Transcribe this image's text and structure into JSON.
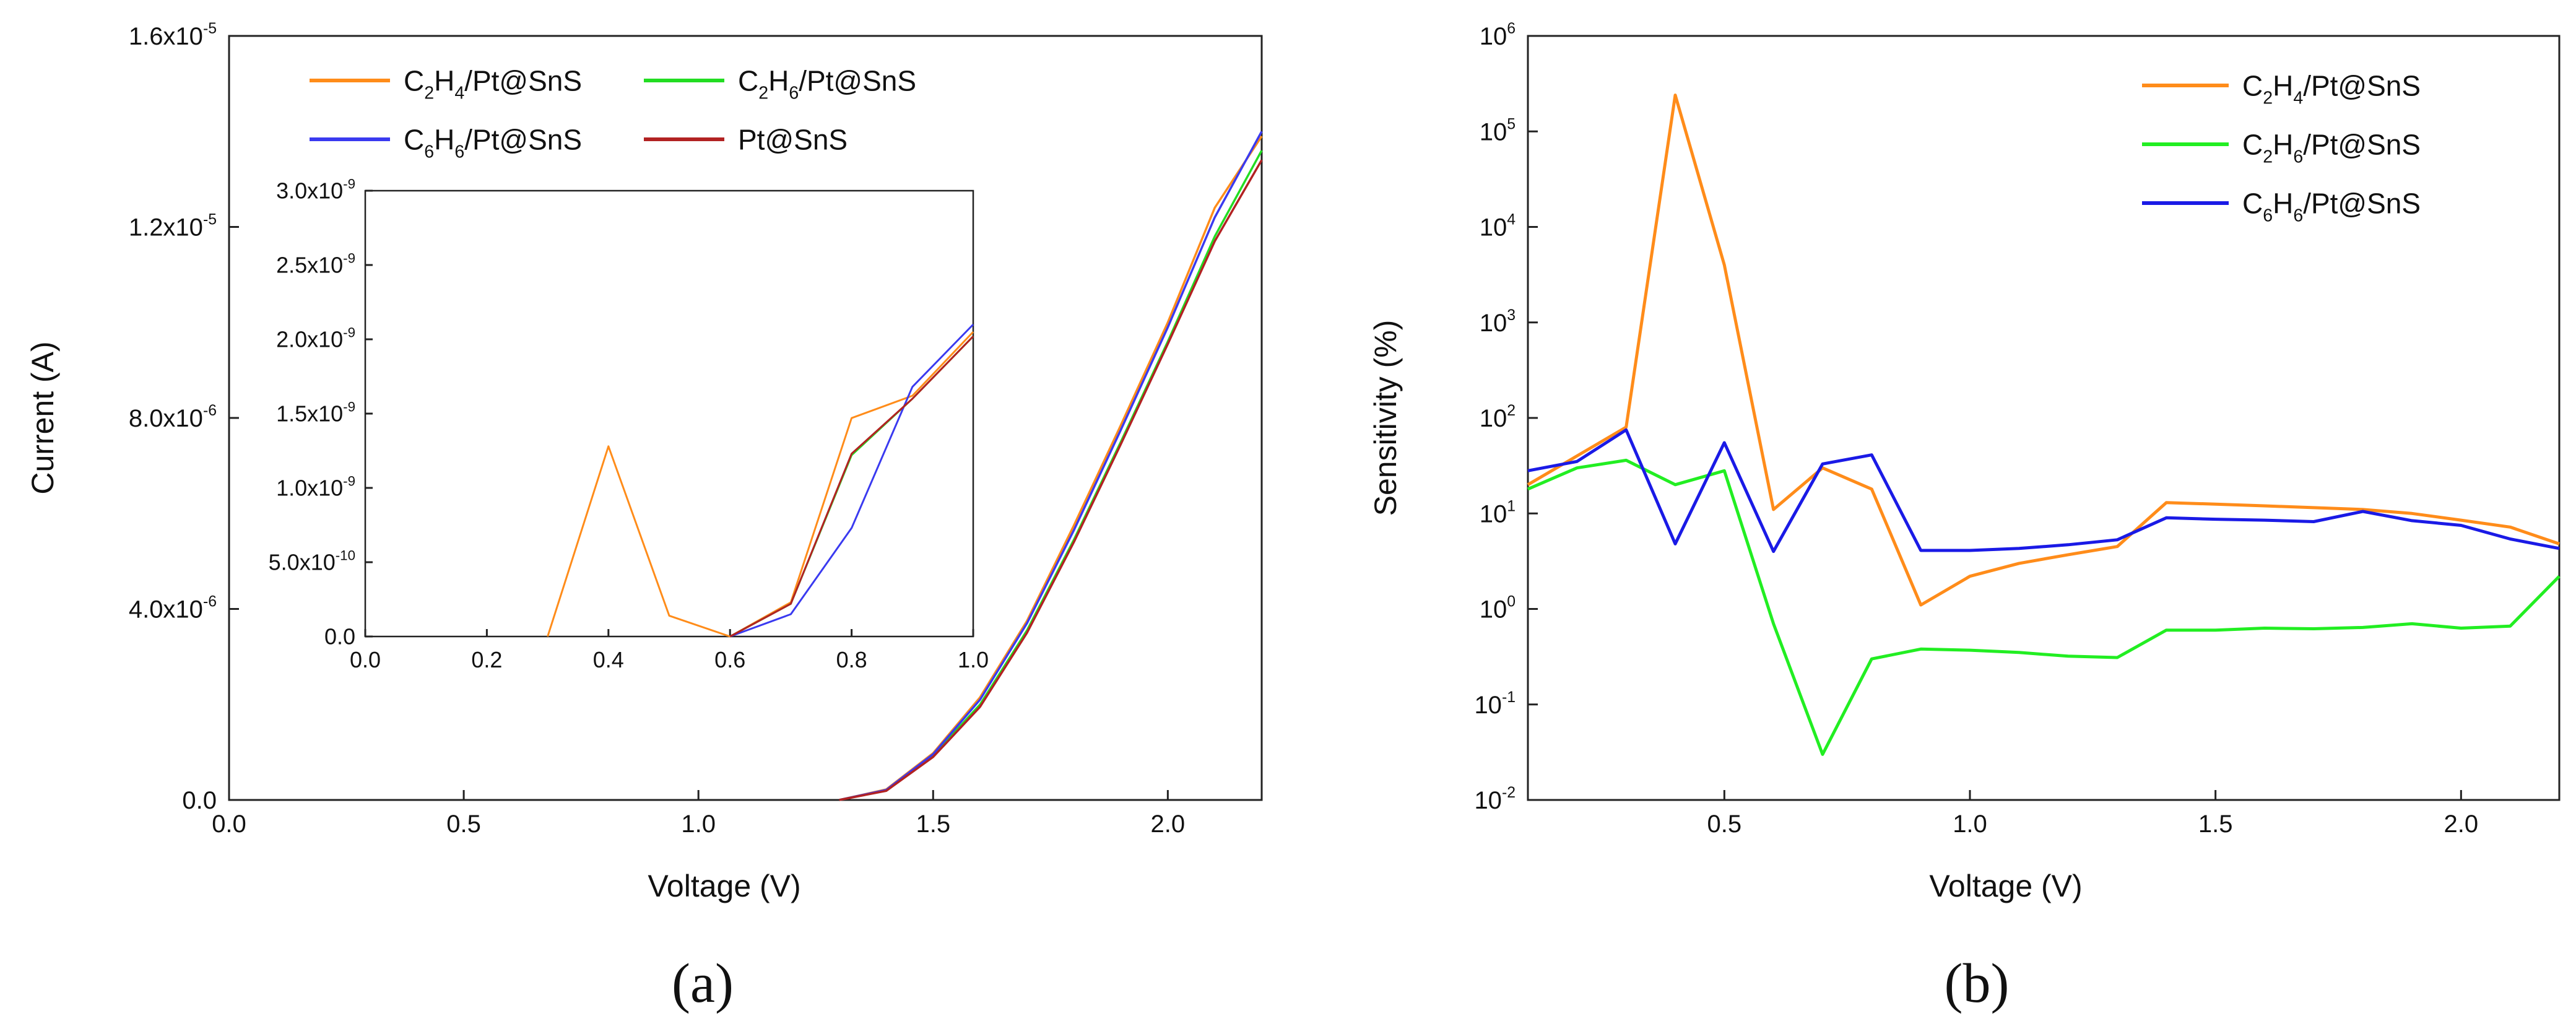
{
  "chart_data": [
    {
      "type": "line",
      "title": "",
      "xlabel": "Voltage (V)",
      "ylabel": "Current (A)",
      "caption": "(a)",
      "xlim": [
        0.0,
        2.2
      ],
      "ylim": [
        0,
        1.6e-05
      ],
      "x_ticks": [
        {
          "v": 0.0,
          "label": "0.0"
        },
        {
          "v": 0.5,
          "label": "0.5"
        },
        {
          "v": 1.0,
          "label": "1.0"
        },
        {
          "v": 1.5,
          "label": "1.5"
        },
        {
          "v": 2.0,
          "label": "2.0"
        }
      ],
      "y_ticks": [
        {
          "v": 0,
          "base": "0.0",
          "exp": ""
        },
        {
          "v": 4e-06,
          "base": "4.0x10",
          "exp": "-6"
        },
        {
          "v": 8e-06,
          "base": "8.0x10",
          "exp": "-6"
        },
        {
          "v": 1.2e-05,
          "base": "1.2x10",
          "exp": "-5"
        },
        {
          "v": 1.6e-05,
          "base": "1.6x10",
          "exp": "-5"
        }
      ],
      "legend": {
        "placement": "top-left",
        "entries": [
          {
            "series": "C2H4/Pt@SnS",
            "parts": [
              [
                "C",
                ""
              ],
              [
                "2",
                "sub"
              ],
              [
                "H",
                ""
              ],
              [
                "4",
                "sub"
              ],
              [
                "/Pt@SnS",
                ""
              ]
            ]
          },
          {
            "series": "C2H6/Pt@SnS",
            "parts": [
              [
                "C",
                ""
              ],
              [
                "2",
                "sub"
              ],
              [
                "H",
                ""
              ],
              [
                "6",
                "sub"
              ],
              [
                "/Pt@SnS",
                ""
              ]
            ]
          },
          {
            "series": "C6H6/Pt@SnS",
            "parts": [
              [
                "C",
                ""
              ],
              [
                "6",
                "sub"
              ],
              [
                "H",
                ""
              ],
              [
                "6",
                "sub"
              ],
              [
                "/Pt@SnS",
                ""
              ]
            ]
          },
          {
            "series": "Pt@SnS",
            "parts": [
              [
                "Pt@SnS",
                ""
              ]
            ]
          }
        ]
      },
      "series": [
        {
          "name": "C2H4/Pt@SnS",
          "color": "#FF8C1A",
          "x": [
            1.3,
            1.4,
            1.5,
            1.6,
            1.7,
            1.8,
            1.9,
            2.0,
            2.1,
            2.2
          ],
          "y": [
            0,
            2.2e-07,
            9.8e-07,
            2.15e-06,
            3.75e-06,
            5.75e-06,
            7.85e-06,
            1e-05,
            1.24e-05,
            1.39e-05
          ]
        },
        {
          "name": "C2H6/Pt@SnS",
          "color": "#22DD22",
          "x": [
            1.3,
            1.4,
            1.5,
            1.6,
            1.7,
            1.8,
            1.9,
            2.0,
            2.1,
            2.2
          ],
          "y": [
            0,
            2e-07,
            9.3e-07,
            2e-06,
            3.55e-06,
            5.45e-06,
            7.5e-06,
            9.6e-06,
            1.18e-05,
            1.36e-05
          ]
        },
        {
          "name": "C6H6/Pt@SnS",
          "color": "#3A3AF0",
          "x": [
            1.3,
            1.4,
            1.5,
            1.6,
            1.7,
            1.8,
            1.9,
            2.0,
            2.1,
            2.2
          ],
          "y": [
            0,
            2.1e-07,
            9.6e-07,
            2.1e-06,
            3.7e-06,
            5.65e-06,
            7.75e-06,
            9.9e-06,
            1.22e-05,
            1.4e-05
          ]
        },
        {
          "name": "Pt@SnS",
          "color": "#B22222",
          "x": [
            1.3,
            1.4,
            1.5,
            1.6,
            1.7,
            1.8,
            1.9,
            2.0,
            2.1,
            2.2
          ],
          "y": [
            0,
            1.9e-07,
            9e-07,
            1.95e-06,
            3.5e-06,
            5.4e-06,
            7.45e-06,
            9.55e-06,
            1.17e-05,
            1.34e-05
          ]
        }
      ],
      "inset": {
        "xlim": [
          0.0,
          1.0
        ],
        "ylim": [
          0,
          3e-09
        ],
        "x_ticks": [
          {
            "v": 0.0,
            "label": "0.0"
          },
          {
            "v": 0.2,
            "label": "0.2"
          },
          {
            "v": 0.4,
            "label": "0.4"
          },
          {
            "v": 0.6,
            "label": "0.6"
          },
          {
            "v": 0.8,
            "label": "0.8"
          },
          {
            "v": 1.0,
            "label": "1.0"
          }
        ],
        "y_ticks": [
          {
            "v": 0,
            "base": "0.0",
            "exp": ""
          },
          {
            "v": 5e-10,
            "base": "5.0x10",
            "exp": "-10"
          },
          {
            "v": 1e-09,
            "base": "1.0x10",
            "exp": "-9"
          },
          {
            "v": 1.5e-09,
            "base": "1.5x10",
            "exp": "-9"
          },
          {
            "v": 2e-09,
            "base": "2.0x10",
            "exp": "-9"
          },
          {
            "v": 2.5e-09,
            "base": "2.5x10",
            "exp": "-9"
          },
          {
            "v": 3e-09,
            "base": "3.0x10",
            "exp": "-9"
          }
        ],
        "series": [
          {
            "name": "C2H4/Pt@SnS",
            "color": "#FF8C1A",
            "x": [
              0.3,
              0.4,
              0.5,
              0.6,
              0.7,
              0.8,
              0.9,
              1.0
            ],
            "y": [
              0,
              1.28e-09,
              1.4e-10,
              0,
              2.3e-10,
              1.47e-09,
              1.62e-09,
              2.05e-09
            ]
          },
          {
            "name": "C2H6/Pt@SnS",
            "color": "#22DD22",
            "x": [
              0.6,
              0.7,
              0.8,
              0.9,
              1.0
            ],
            "y": [
              0,
              2.2e-10,
              1.22e-09,
              1.6e-09,
              2.02e-09
            ]
          },
          {
            "name": "C6H6/Pt@SnS",
            "color": "#3A3AF0",
            "x": [
              0.6,
              0.7,
              0.8,
              0.9,
              1.0
            ],
            "y": [
              0,
              1.5e-10,
              7.3e-10,
              1.68e-09,
              2.1e-09
            ]
          },
          {
            "name": "Pt@SnS",
            "color": "#B22222",
            "x": [
              0.6,
              0.7,
              0.8,
              0.9,
              1.0
            ],
            "y": [
              0,
              2.2e-10,
              1.23e-09,
              1.6e-09,
              2.02e-09
            ]
          }
        ]
      }
    },
    {
      "type": "line",
      "title": "",
      "xlabel": "Voltage (V)",
      "ylabel": "Sensitivity (%)",
      "caption": "(b)",
      "yscale": "log",
      "xlim": [
        0.1,
        2.2
      ],
      "ylim": [
        0.01,
        1000000
      ],
      "x_ticks": [
        {
          "v": 0.5,
          "label": "0.5"
        },
        {
          "v": 1.0,
          "label": "1.0"
        },
        {
          "v": 1.5,
          "label": "1.5"
        },
        {
          "v": 2.0,
          "label": "2.0"
        }
      ],
      "y_ticks": [
        {
          "v": 0.01,
          "base": "10",
          "exp": "-2"
        },
        {
          "v": 0.1,
          "base": "10",
          "exp": "-1"
        },
        {
          "v": 1,
          "base": "10",
          "exp": "0"
        },
        {
          "v": 10,
          "base": "10",
          "exp": "1"
        },
        {
          "v": 100,
          "base": "10",
          "exp": "2"
        },
        {
          "v": 1000,
          "base": "10",
          "exp": "3"
        },
        {
          "v": 10000,
          "base": "10",
          "exp": "4"
        },
        {
          "v": 100000,
          "base": "10",
          "exp": "5"
        },
        {
          "v": 1000000,
          "base": "10",
          "exp": "6"
        }
      ],
      "legend": {
        "placement": "top-right",
        "entries": [
          {
            "series": "C2H4/Pt@SnS",
            "parts": [
              [
                "C",
                ""
              ],
              [
                "2",
                "sub"
              ],
              [
                "H",
                ""
              ],
              [
                "4",
                "sub"
              ],
              [
                "/Pt@SnS",
                ""
              ]
            ]
          },
          {
            "series": "C2H6/Pt@SnS",
            "parts": [
              [
                "C",
                ""
              ],
              [
                "2",
                "sub"
              ],
              [
                "H",
                ""
              ],
              [
                "6",
                "sub"
              ],
              [
                "/Pt@SnS",
                ""
              ]
            ]
          },
          {
            "series": "C6H6/Pt@SnS",
            "parts": [
              [
                "C",
                ""
              ],
              [
                "6",
                "sub"
              ],
              [
                "H",
                ""
              ],
              [
                "6",
                "sub"
              ],
              [
                "/Pt@SnS",
                ""
              ]
            ]
          }
        ]
      },
      "series": [
        {
          "name": "C2H4/Pt@SnS",
          "color": "#FF8C1A",
          "x": [
            0.1,
            0.2,
            0.3,
            0.4,
            0.5,
            0.6,
            0.7,
            0.8,
            0.9,
            1.0,
            1.1,
            1.2,
            1.3,
            1.4,
            1.5,
            1.6,
            1.7,
            1.8,
            1.9,
            2.0,
            2.1,
            2.2
          ],
          "y": [
            20,
            40,
            80,
            240000,
            4000,
            11,
            30,
            18,
            1.1,
            2.2,
            3.0,
            3.7,
            4.5,
            13,
            12.5,
            12,
            11.5,
            11,
            10,
            8.5,
            7.2,
            4.8
          ]
        },
        {
          "name": "C2H6/Pt@SnS",
          "color": "#22EE22",
          "x": [
            0.1,
            0.2,
            0.3,
            0.4,
            0.5,
            0.6,
            0.7,
            0.8,
            0.9,
            1.0,
            1.1,
            1.2,
            1.3,
            1.4,
            1.5,
            1.6,
            1.7,
            1.8,
            1.9,
            2.0,
            2.1,
            2.2
          ],
          "y": [
            18,
            30,
            36,
            20,
            28,
            0.7,
            0.03,
            0.3,
            0.38,
            0.37,
            0.35,
            0.32,
            0.31,
            0.6,
            0.6,
            0.63,
            0.62,
            0.64,
            0.7,
            0.63,
            0.66,
            2.2
          ]
        },
        {
          "name": "C6H6/Pt@SnS",
          "color": "#1A1AE6",
          "x": [
            0.1,
            0.2,
            0.3,
            0.4,
            0.5,
            0.6,
            0.7,
            0.8,
            0.9,
            1.0,
            1.1,
            1.2,
            1.3,
            1.4,
            1.5,
            1.6,
            1.7,
            1.8,
            1.9,
            2.0,
            2.1,
            2.2
          ],
          "y": [
            28,
            35,
            75,
            4.8,
            55,
            4.0,
            33,
            41,
            4.1,
            4.1,
            4.3,
            4.7,
            5.3,
            9,
            8.7,
            8.5,
            8.2,
            10.5,
            8.4,
            7.5,
            5.4,
            4.3
          ]
        }
      ]
    }
  ]
}
